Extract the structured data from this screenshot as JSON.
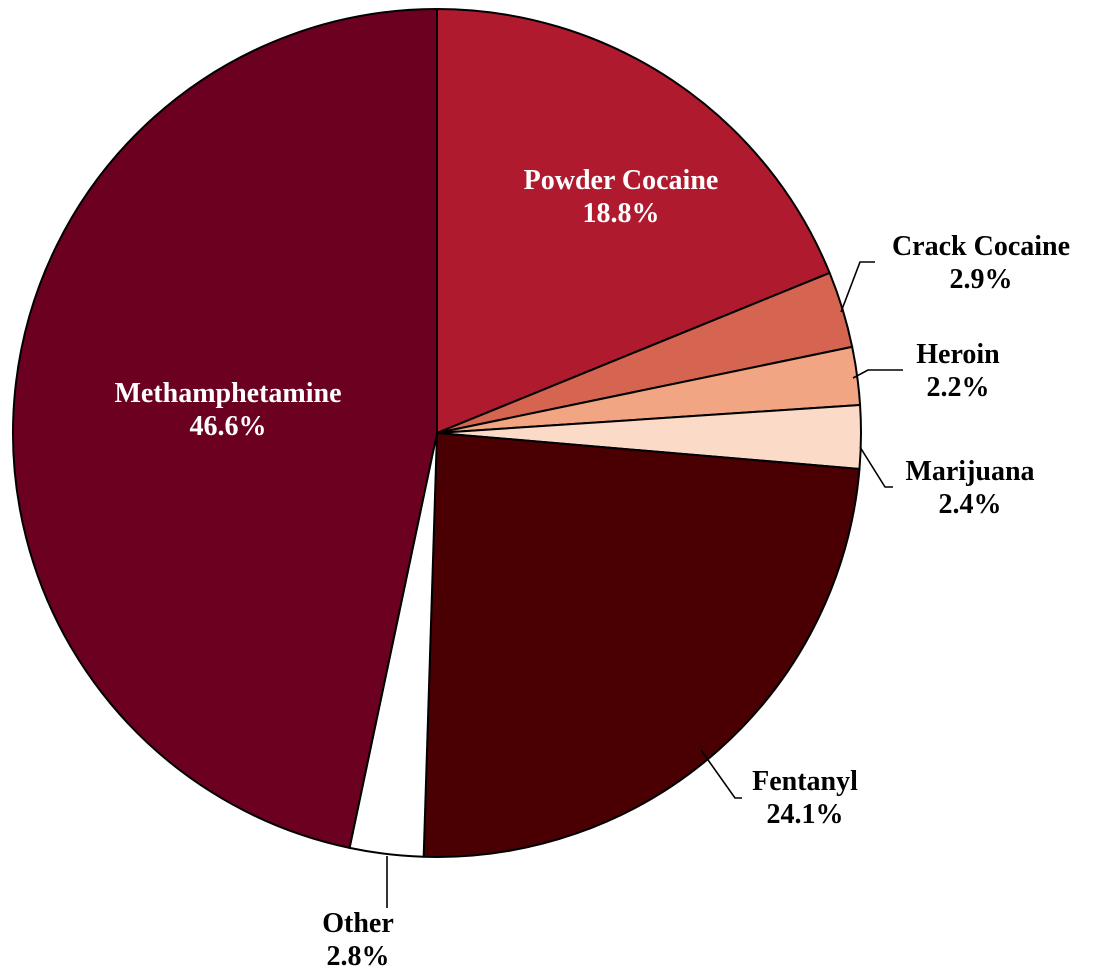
{
  "chart_data": {
    "type": "pie",
    "title": "",
    "slices": [
      {
        "label": "Powder Cocaine",
        "value": 18.8,
        "display": "18.8%",
        "color": "#b01a2e",
        "label_color": "#ffffff"
      },
      {
        "label": "Crack Cocaine",
        "value": 2.9,
        "display": "2.9%",
        "color": "#d56450",
        "label_color": "#000000"
      },
      {
        "label": "Heroin",
        "value": 2.2,
        "display": "2.2%",
        "color": "#f2a582",
        "label_color": "#000000"
      },
      {
        "label": "Marijuana",
        "value": 2.4,
        "display": "2.4%",
        "color": "#fbdac7",
        "label_color": "#000000"
      },
      {
        "label": "Fentanyl",
        "value": 24.1,
        "display": "24.1%",
        "color": "#4a0003",
        "label_color": "#000000"
      },
      {
        "label": "Other",
        "value": 2.8,
        "display": "2.8%",
        "color": "#ffffff",
        "label_color": "#000000"
      },
      {
        "label": "Methamphetamine",
        "value": 46.6,
        "display": "46.6%",
        "color": "#6b0020",
        "label_color": "#ffffff"
      }
    ]
  }
}
